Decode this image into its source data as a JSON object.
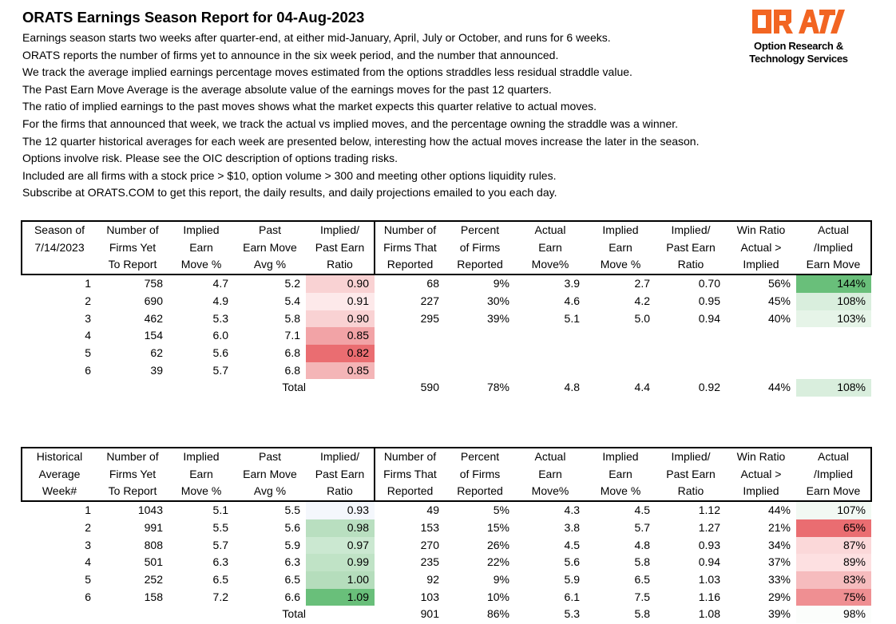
{
  "report": {
    "title": "ORATS Earnings Season Report for 04-Aug-2023",
    "lines": [
      "Earnings season starts two weeks after quarter-end, at either mid-January, April, July or October, and runs for 6 weeks.",
      "ORATS reports the number of firms yet to announce in the six week period, and the number that announced.",
      "We track the average implied earnings percentage moves estimated from the options straddles less residual straddle value.",
      "The Past Earn Move Average is the average absolute value of the earnings moves for the past 12 quarters.",
      "The ratio of implied earnings to the past moves shows what the market expects this quarter relative to actual moves.",
      "For the firms that announced that week, we track the actual vs implied moves, and the percentage owning the straddle was a winner.",
      "The 12 quarter historical averages for each week are presented below, interesting how the actual moves increase the later in the season.",
      "Options involve risk. Please see the OIC description of options trading risks.",
      "Included are all firms with a stock price > $10, option volume > 300 and meeting other options liquidity rules.",
      "Subscribe at ORATS.COM to get this report, the daily results, and daily projections emailed to you each day."
    ]
  },
  "logo": {
    "wordmark": "ORATS",
    "tagline1": "Option Research &",
    "tagline2": "Technology Services",
    "color": "#f26522"
  },
  "colors": {
    "red_strong": "#ea6d71",
    "red_mid": "#f2a3a6",
    "red_light": "#fbd8d9",
    "red_faint": "#fde9ea",
    "green_strong": "#69bf7a",
    "green_mid": "#b9dfc0",
    "green_light": "#d9eedd",
    "green_faint": "#e6f4e8",
    "green_palest": "#f2f9f3",
    "blue_faint": "#f4f7fc"
  },
  "current": {
    "headers": [
      [
        "Season of",
        "Number of",
        "Implied",
        "Past",
        "Implied/",
        "Number of",
        "Percent",
        "Actual",
        "Implied",
        "Implied/",
        "Win Ratio",
        "Actual"
      ],
      [
        "7/14/2023",
        "Firms Yet",
        "Earn",
        "Earn Move",
        "Past Earn",
        "Firms That",
        "of Firms",
        "Earn",
        "Earn",
        "Past Earn",
        "Actual >",
        "/Implied"
      ],
      [
        "",
        "To Report",
        "Move %",
        "Avg %",
        "Ratio",
        "Reported",
        "Reported",
        "Move%",
        "Move %",
        "Ratio",
        "Implied",
        "Earn Move"
      ]
    ],
    "rows": [
      {
        "cells": [
          "1",
          "758",
          "4.7",
          "5.2",
          "0.90",
          "68",
          "9%",
          "3.9",
          "2.7",
          "0.70",
          "56%",
          "144%"
        ],
        "ratio_color": "#f9d2d3",
        "am_color": "#69bf7a"
      },
      {
        "cells": [
          "2",
          "690",
          "4.9",
          "5.4",
          "0.91",
          "227",
          "30%",
          "4.6",
          "4.2",
          "0.95",
          "45%",
          "108%"
        ],
        "ratio_color": "#fde9ea",
        "am_color": "#d9eedd"
      },
      {
        "cells": [
          "3",
          "462",
          "5.3",
          "5.8",
          "0.90",
          "295",
          "39%",
          "5.1",
          "5.0",
          "0.94",
          "40%",
          "103%"
        ],
        "ratio_color": "#f9d2d3",
        "am_color": "#e6f4e8"
      },
      {
        "cells": [
          "4",
          "154",
          "6.0",
          "7.1",
          "0.85",
          "",
          "",
          "",
          "",
          "",
          "",
          ""
        ],
        "ratio_color": "#f2a3a6",
        "am_color": ""
      },
      {
        "cells": [
          "5",
          "62",
          "5.6",
          "6.8",
          "0.82",
          "",
          "",
          "",
          "",
          "",
          "",
          ""
        ],
        "ratio_color": "#ea6d71",
        "am_color": ""
      },
      {
        "cells": [
          "6",
          "39",
          "5.7",
          "6.8",
          "0.85",
          "",
          "",
          "",
          "",
          "",
          "",
          ""
        ],
        "ratio_color": "#f4b5b7",
        "am_color": ""
      }
    ],
    "total": {
      "label": "Total",
      "cells": [
        "590",
        "78%",
        "4.8",
        "4.4",
        "0.92",
        "44%",
        "108%"
      ],
      "am_color": "#d9eedd"
    }
  },
  "historical": {
    "headers": [
      [
        "Historical",
        "Number of",
        "Implied",
        "Past",
        "Implied/",
        "Number of",
        "Percent",
        "Actual",
        "Implied",
        "Implied/",
        "Win Ratio",
        "Actual"
      ],
      [
        "Average",
        "Firms Yet",
        "Earn",
        "Earn Move",
        "Past Earn",
        "Firms That",
        "of Firms",
        "Earn",
        "Earn",
        "Past Earn",
        "Actual >",
        "/Implied"
      ],
      [
        "Week#",
        "To Report",
        "Move %",
        "Avg %",
        "Ratio",
        "Reported",
        "Reported",
        "Move%",
        "Move %",
        "Ratio",
        "Implied",
        "Earn Move"
      ]
    ],
    "rows": [
      {
        "cells": [
          "1",
          "1043",
          "5.1",
          "5.5",
          "0.93",
          "49",
          "5%",
          "4.3",
          "4.5",
          "1.12",
          "44%",
          "107%"
        ],
        "ratio_color": "#f4f7fc",
        "am_color": "#f2f9f3"
      },
      {
        "cells": [
          "2",
          "991",
          "5.5",
          "5.6",
          "0.98",
          "153",
          "15%",
          "3.8",
          "5.7",
          "1.27",
          "21%",
          "65%"
        ],
        "ratio_color": "#b9dfc0",
        "am_color": "#ea6d71"
      },
      {
        "cells": [
          "3",
          "808",
          "5.7",
          "5.9",
          "0.97",
          "270",
          "26%",
          "4.5",
          "4.8",
          "0.93",
          "34%",
          "87%"
        ],
        "ratio_color": "#cbe8d1",
        "am_color": "#fbd8d9"
      },
      {
        "cells": [
          "4",
          "501",
          "6.3",
          "6.3",
          "0.99",
          "235",
          "22%",
          "5.6",
          "5.8",
          "0.94",
          "37%",
          "89%"
        ],
        "ratio_color": "#c0e3c6",
        "am_color": "#fde0e1"
      },
      {
        "cells": [
          "5",
          "252",
          "6.5",
          "6.5",
          "1.00",
          "92",
          "9%",
          "5.9",
          "6.5",
          "1.03",
          "33%",
          "83%"
        ],
        "ratio_color": "#b5ddbc",
        "am_color": "#f6bcbe"
      },
      {
        "cells": [
          "6",
          "158",
          "7.2",
          "6.6",
          "1.09",
          "103",
          "10%",
          "6.1",
          "7.5",
          "1.16",
          "29%",
          "75%"
        ],
        "ratio_color": "#69bf7a",
        "am_color": "#ef8f92"
      }
    ],
    "total": {
      "label": "Total",
      "cells": [
        "901",
        "86%",
        "5.3",
        "5.8",
        "1.08",
        "39%",
        "98%"
      ],
      "am_color": "#fbfdfb"
    }
  }
}
